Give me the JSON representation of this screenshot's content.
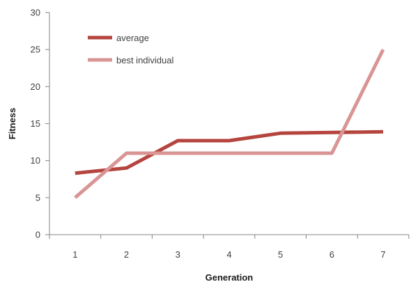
{
  "chart_data": {
    "type": "line",
    "x": [
      1,
      2,
      3,
      4,
      5,
      6,
      7
    ],
    "categories": [
      "1",
      "2",
      "3",
      "4",
      "5",
      "6",
      "7"
    ],
    "series": [
      {
        "name": "average",
        "values": [
          8.3,
          9.0,
          12.7,
          12.7,
          13.7,
          13.8,
          13.9
        ],
        "color": "#b5443e"
      },
      {
        "name": "best individual",
        "values": [
          5,
          11,
          11,
          11,
          11,
          11,
          25
        ],
        "color": "#d99594"
      }
    ],
    "title": "",
    "xlabel": "Generation",
    "ylabel": "Fitness",
    "ylim": [
      0,
      30
    ],
    "yticks": [
      0,
      5,
      10,
      15,
      20,
      25,
      30
    ],
    "grid": false,
    "legend_position": "top-left"
  }
}
